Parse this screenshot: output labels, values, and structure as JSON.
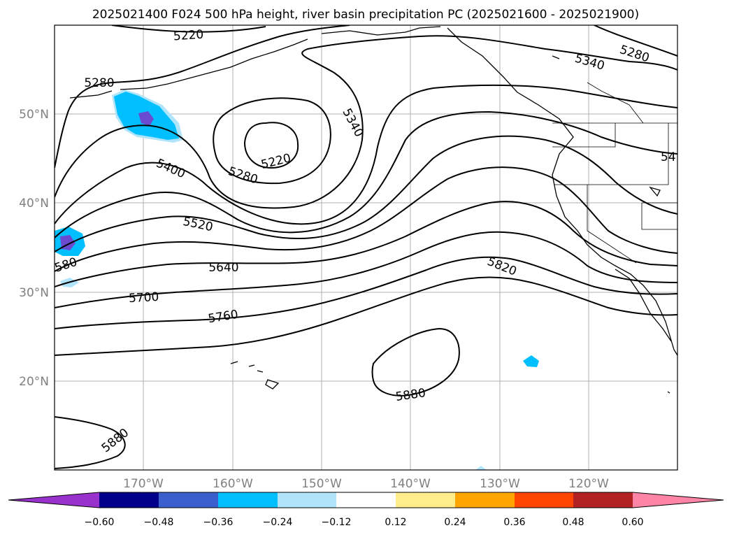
{
  "title": "2025021400 F024 500 hPa height, river basin precipitation PC (2025021600 - 2025021900)",
  "axes": {
    "lon_ticks": [
      "170°W",
      "160°W",
      "150°W",
      "140°W",
      "130°W",
      "120°W"
    ],
    "lat_ticks": [
      "50°N",
      "40°N",
      "30°N",
      "20°N"
    ]
  },
  "contour_labels": {
    "c5220_top": "5220",
    "c5280_nw": "5280",
    "c5220_low": "5220",
    "c5280_low": "5280",
    "c5340_a": "5340",
    "c5340_b": "5340",
    "c5280_ne": "5280",
    "c5400": "5400",
    "c5460_edge": "54",
    "c5520": "5520",
    "c5580_edge": "580",
    "c5640": "5640",
    "c5700": "5700",
    "c5760": "5760",
    "c5820": "5820",
    "c5880_mid": "5880",
    "c5880_sw": "5880"
  },
  "colorbar": {
    "ticks": [
      "−0.60",
      "−0.48",
      "−0.36",
      "−0.24",
      "−0.12",
      "0.12",
      "0.24",
      "0.36",
      "0.48",
      "0.60"
    ],
    "colors": [
      "#9932cc",
      "#00008b",
      "#3a5fcd",
      "#00bfff",
      "#afe4fb",
      "#ffffff",
      "#ffec8b",
      "#ffa500",
      "#ff4500",
      "#b22222",
      "#ff85a6"
    ]
  },
  "precip_colors": {
    "cyan": "#00bfff",
    "light": "#afe4fb",
    "purple": "#6a4bd0"
  }
}
